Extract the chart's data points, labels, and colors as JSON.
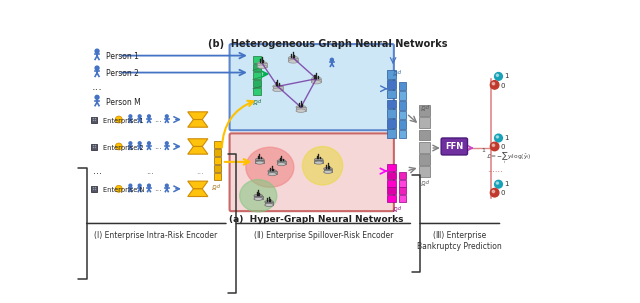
{
  "bg_color": "#ffffff",
  "section_labels": [
    "(Ⅰ) Enterprise Intra-Risk Encoder",
    "(Ⅱ) Enterprise Spillover-Risk Encoder",
    "(Ⅲ) Enterprise\nBankruptcy Prediction"
  ],
  "label_b": "(b)  Heterogeneous Graph Neural Networks",
  "label_a": "(a)  Hyper-Graph Neural Networks",
  "persons": [
    "Person 1",
    "Person 2",
    "Person M"
  ],
  "enterprises": [
    "Enterprise 1",
    "Enterprise 2",
    "Enterprise N"
  ],
  "ffn_color": "#7030a0",
  "blue_box_color": "#c5e3f5",
  "pink_box_color": "#f5d0d0",
  "arrow_blue": "#4472c4",
  "arrow_green": "#00b050",
  "arrow_yellow": "#ffc000",
  "arrow_magenta": "#ff00ff",
  "node_blue": "#4472c4",
  "node_gray": "#a0a0a0",
  "node_red": "#c0392b",
  "node_cyan": "#17a2b8",
  "purple_edge": "#7030a0",
  "green_matrix": "#00b050",
  "yellow_enc": "#ffc000",
  "magenta_block": "#ff00ff",
  "blue_block": "#4472c4",
  "gray_block": "#808080"
}
